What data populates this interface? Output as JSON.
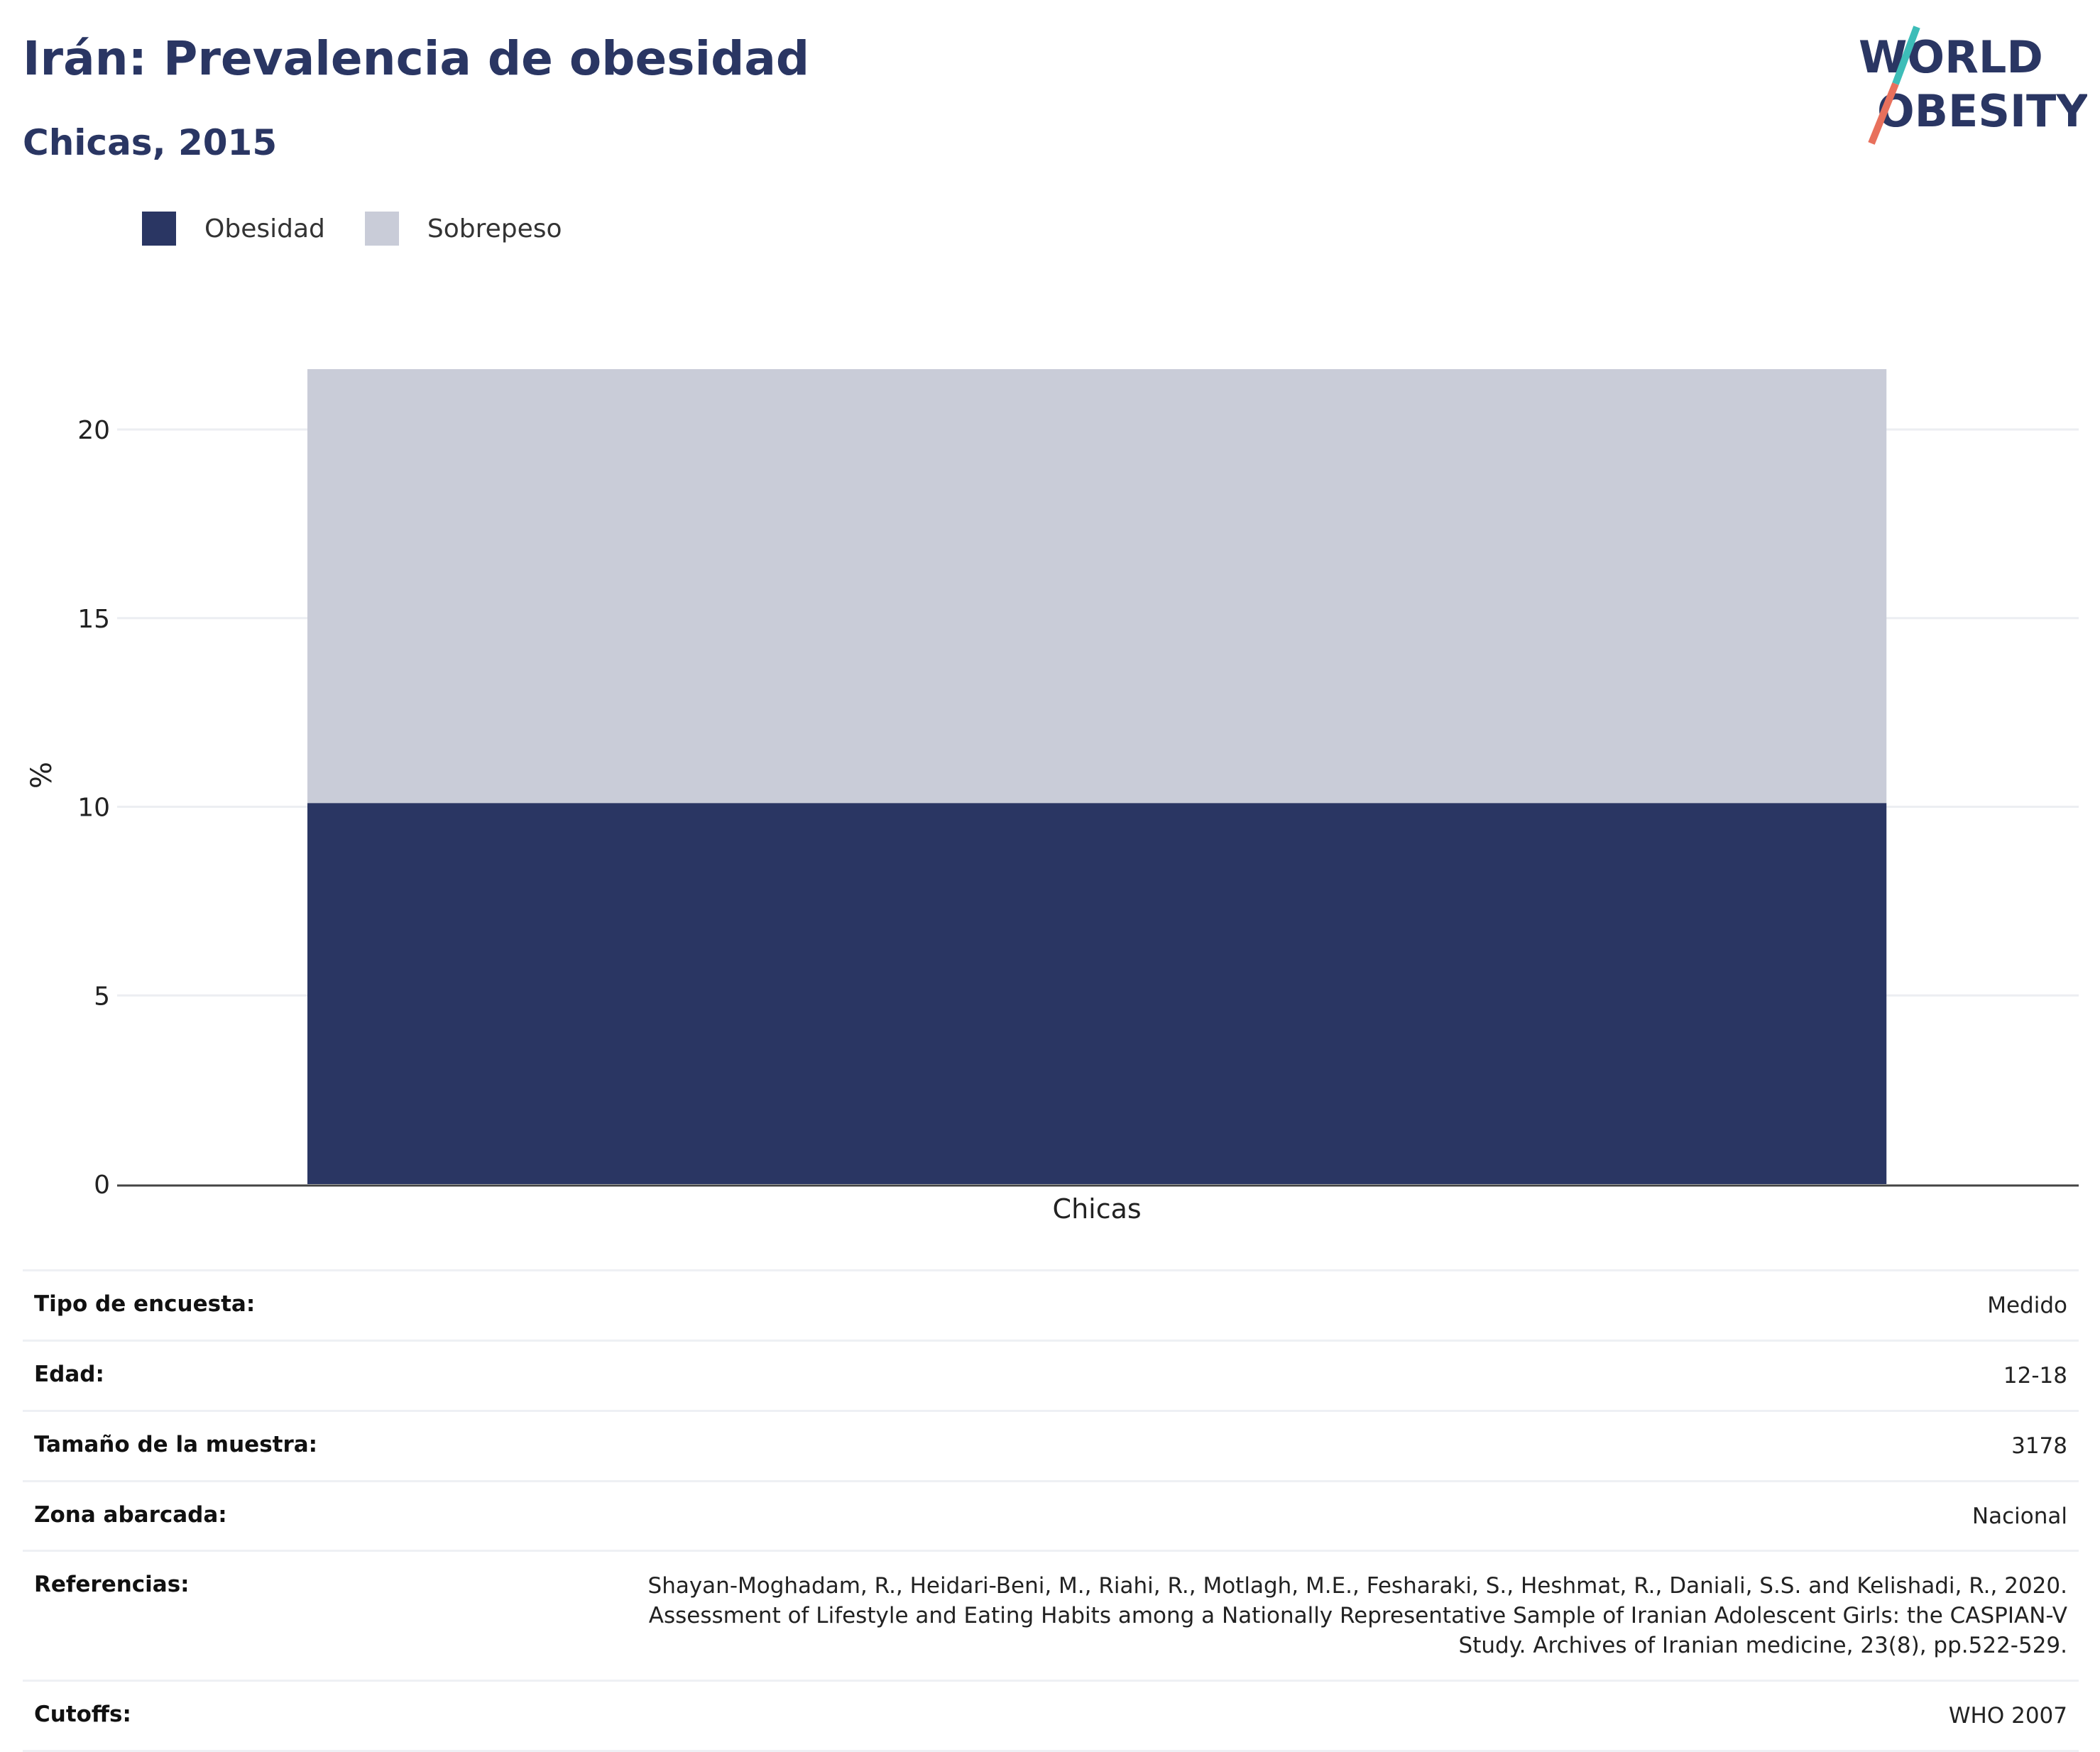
{
  "header": {
    "title": "Irán: Prevalencia de obesidad",
    "subtitle": "Chicas, 2015",
    "logo_line1": "WORLD",
    "logo_line2": "OBESITY"
  },
  "colors": {
    "obesity": "#2a3663",
    "overweight": "#c9ccd8",
    "logo_teal": "#3dbdb8",
    "logo_coral": "#e8705c"
  },
  "chart_data": {
    "type": "bar",
    "stacked": true,
    "categories": [
      "Chicas"
    ],
    "series": [
      {
        "name": "Obesidad",
        "values": [
          10.1
        ],
        "color": "#2a3663"
      },
      {
        "name": "Sobrepeso",
        "values": [
          11.5
        ],
        "color": "#c9ccd8"
      }
    ],
    "title": "Irán: Prevalencia de obesidad",
    "subtitle": "Chicas, 2015",
    "xlabel": "",
    "ylabel": "%",
    "ylim": [
      0,
      21.6
    ],
    "yticks": [
      0,
      5,
      10,
      15,
      20
    ],
    "grid": true,
    "legend_position": "top-left"
  },
  "meta": [
    {
      "key": "Tipo de encuesta:",
      "value": "Medido"
    },
    {
      "key": "Edad:",
      "value": "12-18"
    },
    {
      "key": "Tamaño de la muestra:",
      "value": "3178"
    },
    {
      "key": "Zona abarcada:",
      "value": "Nacional"
    },
    {
      "key": "Referencias:",
      "value": "Shayan-Moghadam, R., Heidari-Beni, M., Riahi, R., Motlagh, M.E., Fesharaki, S., Heshmat, R., Daniali, S.S. and Kelishadi, R., 2020. Assessment of Lifestyle and Eating Habits among a Nationally Representative Sample of Iranian Adolescent Girls: the CASPIAN-V Study. Archives of Iranian medicine, 23(8), pp.522-529."
    },
    {
      "key": "Cutoffs:",
      "value": "WHO 2007"
    }
  ]
}
